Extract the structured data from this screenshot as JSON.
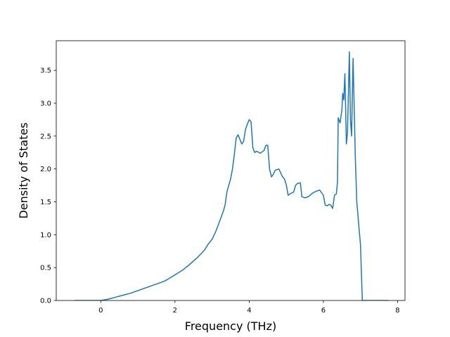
{
  "chart_data": {
    "type": "line",
    "title": "",
    "xlabel": "Frequency (THz)",
    "ylabel": "Density of States",
    "xlim": [
      -1.2,
      8.2
    ],
    "ylim": [
      0,
      3.95
    ],
    "xticks": [
      0,
      2,
      4,
      6,
      8
    ],
    "xtick_labels": [
      "0",
      "2",
      "4",
      "6",
      "8"
    ],
    "yticks": [
      0.0,
      0.5,
      1.0,
      1.5,
      2.0,
      2.5,
      3.0,
      3.5
    ],
    "ytick_labels": [
      "0.0",
      "0.5",
      "1.0",
      "1.5",
      "2.0",
      "2.5",
      "3.0",
      "3.5"
    ],
    "grid": false,
    "legend": "none",
    "line_color": "#1f77b4",
    "series": [
      {
        "x": [
          -0.7,
          -0.4,
          0.0,
          0.2,
          0.4,
          0.6,
          0.8,
          1.0,
          1.2,
          1.4,
          1.6,
          1.7,
          1.8,
          2.0,
          2.2,
          2.4,
          2.6,
          2.8,
          2.9,
          3.0,
          3.1,
          3.2,
          3.3,
          3.35,
          3.4,
          3.5,
          3.55,
          3.6,
          3.65,
          3.7,
          3.75,
          3.8,
          3.85,
          3.9,
          3.95,
          4.0,
          4.05,
          4.1,
          4.15,
          4.2,
          4.3,
          4.4,
          4.45,
          4.5,
          4.55,
          4.6,
          4.65,
          4.7,
          4.8,
          4.9,
          4.95,
          5.0,
          5.05,
          5.1,
          5.2,
          5.25,
          5.3,
          5.38,
          5.42,
          5.5,
          5.6,
          5.7,
          5.8,
          5.85,
          5.9,
          6.0,
          6.05,
          6.1,
          6.15,
          6.2,
          6.25,
          6.3,
          6.35,
          6.38,
          6.4,
          6.45,
          6.5,
          6.52,
          6.55,
          6.58,
          6.62,
          6.65,
          6.7,
          6.73,
          6.76,
          6.8,
          6.83,
          6.86,
          6.9,
          7.0,
          7.05,
          7.08,
          7.2,
          7.5,
          7.75
        ],
        "y": [
          0.0,
          0.0,
          0.0,
          0.02,
          0.05,
          0.08,
          0.11,
          0.15,
          0.19,
          0.23,
          0.27,
          0.29,
          0.32,
          0.39,
          0.46,
          0.55,
          0.65,
          0.77,
          0.86,
          0.93,
          1.05,
          1.2,
          1.35,
          1.45,
          1.65,
          1.85,
          2.0,
          2.22,
          2.47,
          2.52,
          2.45,
          2.38,
          2.42,
          2.6,
          2.68,
          2.75,
          2.72,
          2.32,
          2.25,
          2.27,
          2.24,
          2.28,
          2.36,
          2.36,
          2.0,
          1.88,
          1.92,
          1.98,
          2.0,
          1.88,
          1.85,
          1.76,
          1.6,
          1.62,
          1.65,
          1.75,
          1.78,
          1.79,
          1.58,
          1.56,
          1.58,
          1.63,
          1.66,
          1.67,
          1.68,
          1.6,
          1.45,
          1.44,
          1.46,
          1.45,
          1.4,
          1.6,
          1.62,
          1.8,
          2.78,
          2.7,
          2.9,
          3.15,
          3.05,
          3.45,
          2.38,
          2.55,
          3.78,
          2.75,
          2.5,
          3.68,
          2.95,
          2.2,
          1.5,
          0.85,
          0.0,
          0.0,
          0.0,
          0.0,
          0.0
        ]
      }
    ]
  }
}
